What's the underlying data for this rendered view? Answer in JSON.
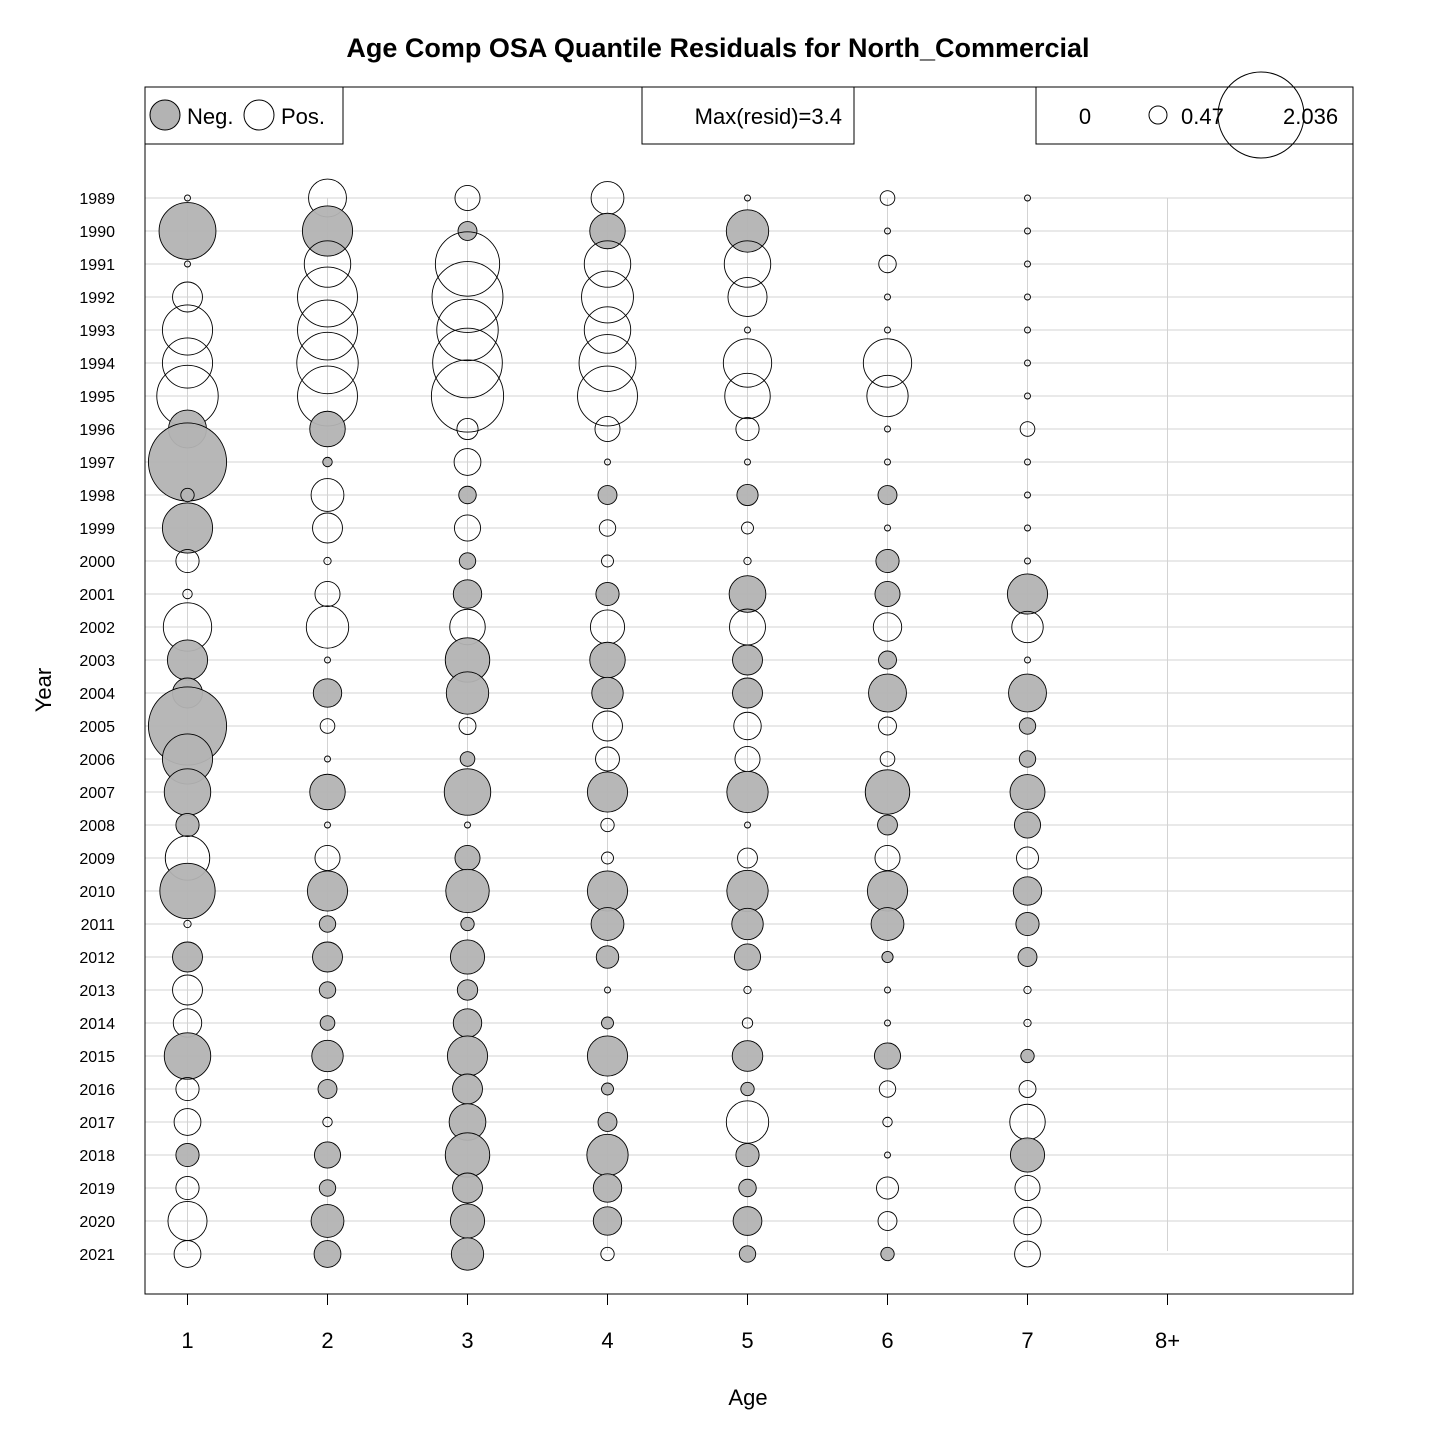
{
  "chart_data": {
    "type": "scatter",
    "subtype": "bubble",
    "title": "Age Comp OSA Quantile Residuals for North_Commercial",
    "xlabel": "Age",
    "ylabel": "Year",
    "x_categories": [
      "1",
      "2",
      "3",
      "4",
      "5",
      "6",
      "7",
      "8+"
    ],
    "years": [
      1989,
      1990,
      1991,
      1992,
      1993,
      1994,
      1995,
      1996,
      1997,
      1998,
      1999,
      2000,
      2001,
      2002,
      2003,
      2004,
      2005,
      2006,
      2007,
      2008,
      2009,
      2010,
      2011,
      2012,
      2013,
      2014,
      2015,
      2016,
      2017,
      2018,
      2019,
      2020,
      2021
    ],
    "legend": {
      "neg_label": "Neg.",
      "pos_label": "Pos.",
      "max_label": "Max(resid)=3.4",
      "size_labels": [
        "0",
        "0.47",
        "2.036"
      ],
      "size_values": [
        0,
        0.47,
        2.036
      ]
    },
    "colors": {
      "negative_fill": "#b3b3b3",
      "positive_fill": "none",
      "grid": "#d3d3d3"
    },
    "series": [
      {
        "name": "1",
        "values": [
          0.02,
          -1.8,
          0.02,
          0.5,
          1.4,
          1.4,
          2.1,
          -0.8,
          -3.4,
          -0.1,
          -1.4,
          0.3,
          0.05,
          1.3,
          -0.9,
          -0.5,
          -3.4,
          -1.4,
          -1.2,
          -0.3,
          1.1,
          -1.7,
          0.03,
          -0.5,
          0.5,
          0.45,
          -1.2,
          0.3,
          0.4,
          -0.3,
          0.3,
          0.85,
          0.4
        ]
      },
      {
        "name": "2",
        "values": [
          0.8,
          -1.4,
          1.2,
          2.0,
          2.0,
          2.1,
          2.0,
          -0.7,
          -0.05,
          0.6,
          0.5,
          0.03,
          0.35,
          1.0,
          0.02,
          -0.45,
          0.12,
          0.02,
          -0.7,
          0.02,
          0.35,
          -0.9,
          -0.15,
          -0.5,
          -0.15,
          -0.12,
          -0.55,
          -0.2,
          0.05,
          -0.38,
          -0.15,
          -0.6,
          -0.4
        ]
      },
      {
        "name": "3",
        "values": [
          0.35,
          -0.2,
          2.3,
          2.8,
          2.1,
          2.7,
          2.9,
          0.25,
          0.4,
          -0.17,
          0.38,
          -0.15,
          -0.45,
          0.7,
          -1.1,
          -1.0,
          0.16,
          -0.12,
          -1.2,
          0.02,
          -0.35,
          -1.05,
          -0.1,
          -0.65,
          -0.23,
          -0.45,
          -0.9,
          -0.5,
          -0.75,
          -1.1,
          -0.5,
          -0.65,
          -0.58
        ]
      },
      {
        "name": "4",
        "values": [
          0.6,
          -0.7,
          1.2,
          1.5,
          1.2,
          1.8,
          2.0,
          0.35,
          0.02,
          -0.2,
          0.15,
          0.08,
          -0.3,
          0.65,
          -0.7,
          -0.55,
          0.5,
          0.32,
          -0.9,
          0.1,
          0.08,
          -0.9,
          -0.6,
          -0.28,
          0.02,
          -0.08,
          -0.9,
          -0.08,
          -0.2,
          -0.95,
          -0.45,
          -0.45,
          0.1
        ]
      },
      {
        "name": "5",
        "values": [
          0.02,
          -1.0,
          1.2,
          0.85,
          0.02,
          1.3,
          1.15,
          0.3,
          0.02,
          -0.25,
          0.08,
          0.03,
          -0.75,
          0.72,
          -0.5,
          -0.5,
          0.42,
          0.35,
          -0.95,
          0.02,
          0.22,
          -0.95,
          -0.55,
          -0.38,
          0.03,
          0.06,
          -0.52,
          -0.1,
          1.0,
          -0.3,
          -0.17,
          -0.46,
          -0.15
        ]
      },
      {
        "name": "6",
        "values": [
          0.12,
          0.02,
          0.17,
          0.02,
          0.02,
          1.3,
          0.95,
          0.02,
          0.02,
          -0.2,
          0.02,
          -0.3,
          -0.35,
          0.45,
          -0.18,
          -0.8,
          0.18,
          0.12,
          -1.1,
          -0.22,
          0.35,
          -0.9,
          -0.6,
          -0.07,
          0.02,
          0.02,
          -0.38,
          0.15,
          0.05,
          0.02,
          0.27,
          0.2,
          -0.1
        ]
      },
      {
        "name": "7",
        "values": [
          0.02,
          0.02,
          0.02,
          0.02,
          0.02,
          0.02,
          0.02,
          0.12,
          0.02,
          0.02,
          0.02,
          0.02,
          -0.9,
          0.55,
          0.02,
          -0.8,
          -0.15,
          -0.15,
          -0.68,
          -0.38,
          0.27,
          -0.45,
          -0.3,
          -0.2,
          0.03,
          0.03,
          -0.1,
          0.16,
          0.7,
          -0.65,
          0.35,
          0.42,
          0.37
        ]
      },
      {
        "name": "8+",
        "values": []
      }
    ]
  }
}
